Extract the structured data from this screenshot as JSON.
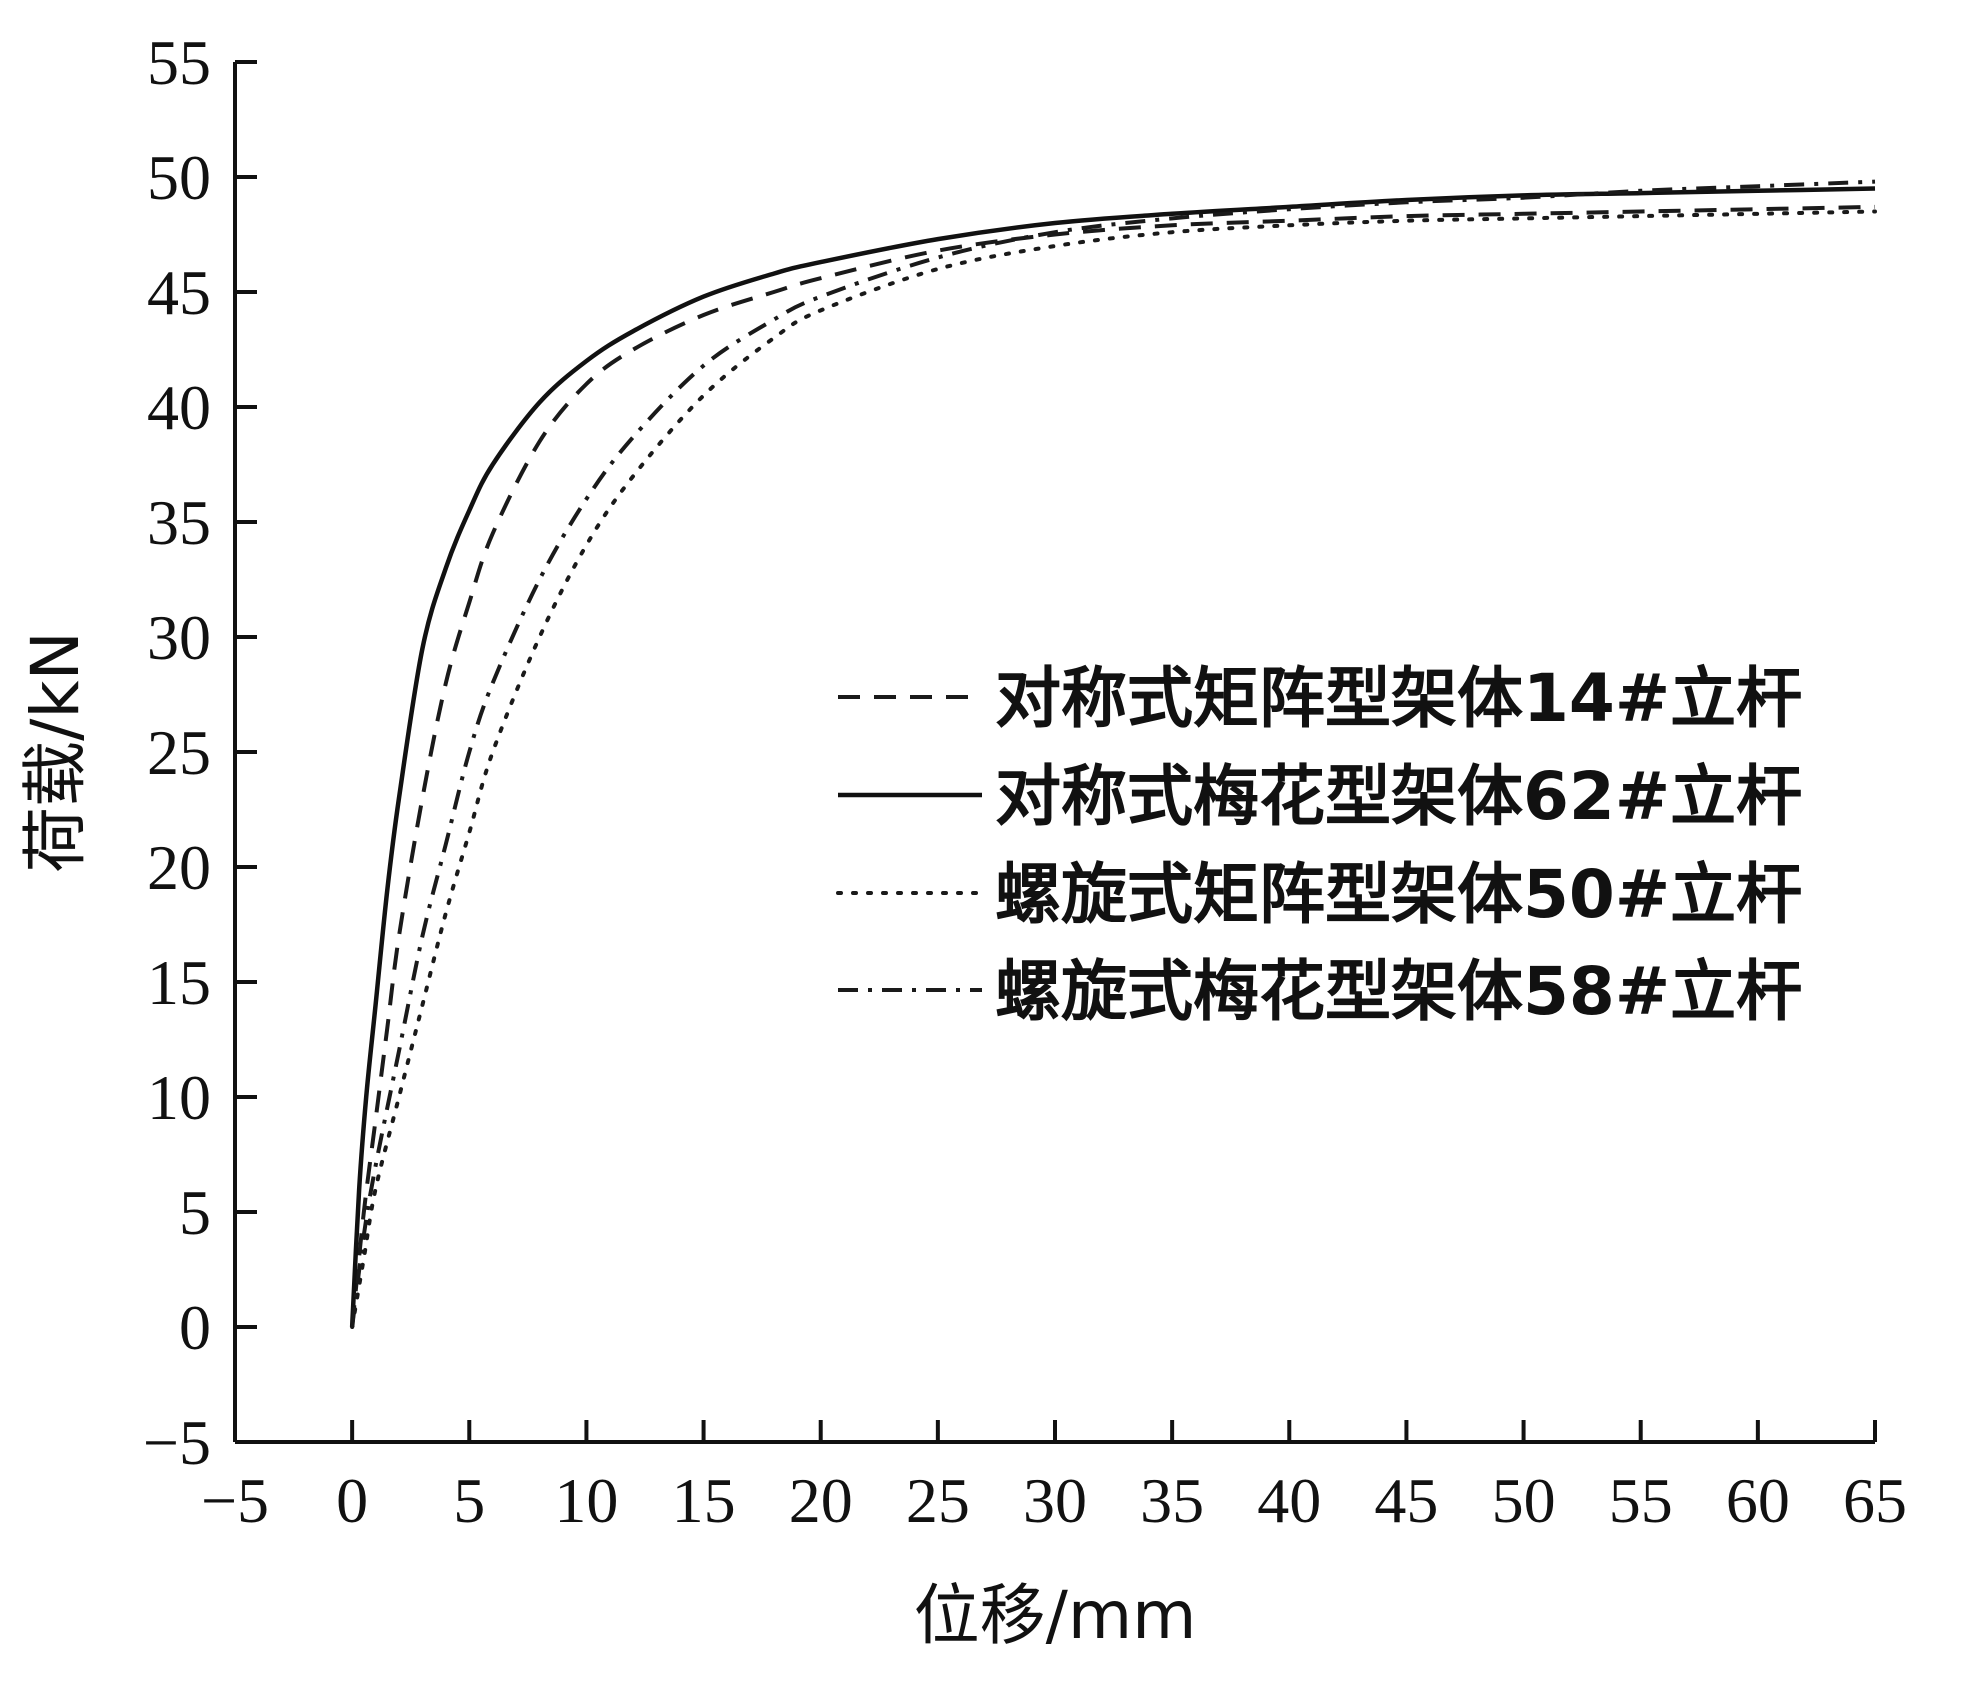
{
  "chart_data": {
    "type": "line",
    "xlabel": "位移/mm",
    "ylabel": "荷载/kN",
    "xlim": [
      -5,
      65
    ],
    "ylim": [
      -5,
      55
    ],
    "x_ticks": [
      -5,
      0,
      5,
      10,
      15,
      20,
      25,
      30,
      35,
      40,
      45,
      50,
      55,
      60,
      65
    ],
    "y_ticks": [
      -5,
      0,
      5,
      10,
      15,
      20,
      25,
      30,
      35,
      40,
      45,
      50,
      55
    ],
    "x_tick_labels": [
      "−5",
      "0",
      "5",
      "10",
      "15",
      "20",
      "25",
      "30",
      "35",
      "40",
      "45",
      "50",
      "55",
      "60",
      "65"
    ],
    "y_tick_labels": [
      "−5",
      "0",
      "5",
      "10",
      "15",
      "20",
      "25",
      "30",
      "35",
      "40",
      "45",
      "50",
      "55"
    ],
    "grid": false,
    "legend_position": "center-right",
    "series": [
      {
        "name": "对称式矩阵型架体14#立杆",
        "style": "dashed",
        "color": "#1a1a1a",
        "x": [
          0,
          0.5,
          1,
          1.5,
          2,
          3,
          4,
          5,
          6,
          8,
          10,
          12,
          15,
          18,
          20,
          25,
          30,
          35,
          40,
          45,
          50,
          55,
          60,
          65
        ],
        "y": [
          0,
          5,
          9,
          13,
          17,
          23,
          28,
          31.5,
          34.5,
          38.5,
          41,
          42.5,
          44,
          45,
          45.6,
          46.8,
          47.5,
          47.9,
          48.1,
          48.3,
          48.4,
          48.5,
          48.6,
          48.7
        ]
      },
      {
        "name": "对称式梅花型架体62#立杆",
        "style": "solid",
        "color": "#111111",
        "x": [
          0,
          0.3,
          0.6,
          1,
          1.5,
          2,
          3,
          4,
          5,
          6,
          8,
          10,
          12,
          15,
          18,
          20,
          25,
          30,
          35,
          40,
          45,
          50,
          55,
          60,
          65
        ],
        "y": [
          0,
          6,
          10,
          14,
          19,
          23,
          29.5,
          33,
          35.5,
          37.5,
          40.2,
          42,
          43.3,
          44.8,
          45.8,
          46.3,
          47.3,
          48,
          48.4,
          48.7,
          49,
          49.2,
          49.3,
          49.4,
          49.5
        ]
      },
      {
        "name": "螺旋式矩阵型架体50#立杆",
        "style": "dotted",
        "color": "#1a1a1a",
        "x": [
          0,
          0.5,
          1,
          2,
          3,
          4,
          5,
          6,
          8,
          10,
          12,
          15,
          18,
          20,
          25,
          30,
          35,
          40,
          45,
          50,
          55,
          60,
          65
        ],
        "y": [
          0,
          3,
          6,
          10,
          14,
          18,
          21.5,
          25,
          30,
          34,
          37,
          40.5,
          43,
          44.2,
          46,
          47,
          47.6,
          47.9,
          48.1,
          48.2,
          48.3,
          48.4,
          48.5
        ]
      },
      {
        "name": "螺旋式梅花型架体58#立杆",
        "style": "dashdot",
        "color": "#1a1a1a",
        "x": [
          0,
          0.5,
          1,
          2,
          3,
          4,
          5,
          6,
          8,
          10,
          12,
          15,
          18,
          20,
          25,
          30,
          35,
          40,
          45,
          50,
          55,
          60,
          65
        ],
        "y": [
          0,
          4,
          7,
          12,
          17,
          21,
          25,
          28,
          32.5,
          36,
          38.7,
          41.8,
          43.8,
          44.8,
          46.5,
          47.6,
          48.2,
          48.6,
          48.9,
          49.1,
          49.4,
          49.6,
          49.8
        ]
      }
    ]
  }
}
